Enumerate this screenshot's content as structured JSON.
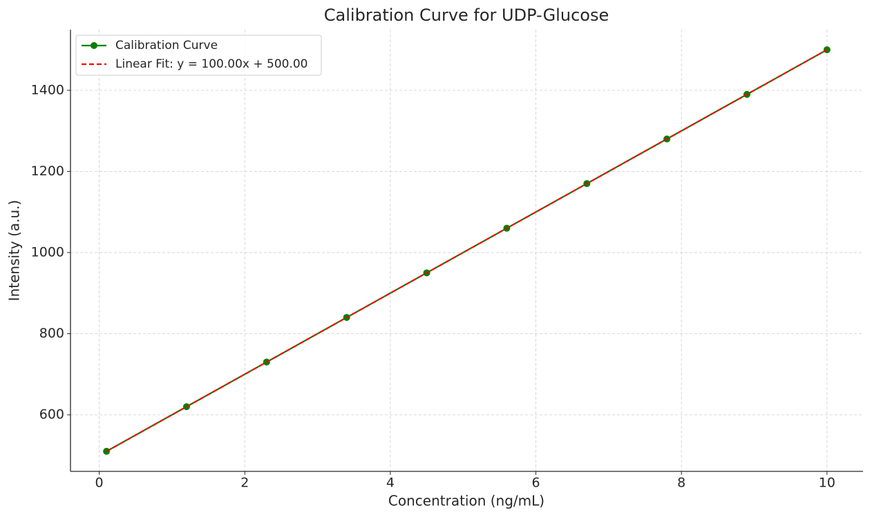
{
  "chart_data": {
    "type": "line",
    "title": "Calibration Curve for UDP-Glucose",
    "x_label": "Concentration (ng/mL)",
    "y_label": "Intensity (a.u.)",
    "x": [
      0.1,
      1.2,
      2.3,
      3.4,
      4.5,
      5.6,
      6.7,
      7.8,
      8.9,
      10.0
    ],
    "series": [
      {
        "name": "Calibration Curve",
        "color": "#008000",
        "linestyle": "solid",
        "markers": true,
        "values": [
          510,
          620,
          730,
          840,
          950,
          1060,
          1170,
          1280,
          1390,
          1500
        ]
      },
      {
        "name": "Linear Fit: y = 100.00x + 500.00",
        "color": "#ff0000",
        "linestyle": "dashed",
        "markers": false,
        "values": [
          510,
          620,
          730,
          840,
          950,
          1060,
          1170,
          1280,
          1390,
          1500
        ]
      }
    ],
    "xlim": [
      -0.395,
      10.495
    ],
    "ylim": [
      460.5,
      1549.5
    ],
    "xticks": [
      0,
      2,
      4,
      6,
      8,
      10
    ],
    "yticks": [
      600,
      800,
      1000,
      1200,
      1400
    ],
    "grid": true,
    "legend": "upper-left"
  }
}
